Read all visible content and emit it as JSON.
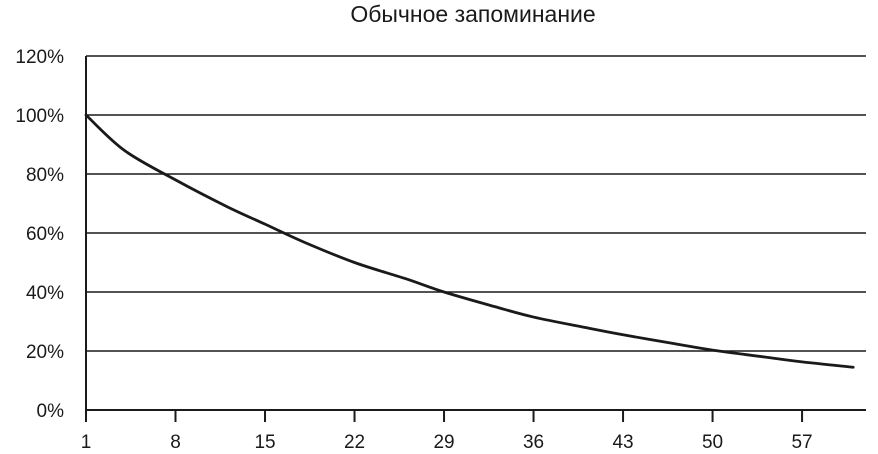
{
  "chart_data": {
    "type": "line",
    "title": "Обычное запоминание",
    "xlabel": "",
    "ylabel": "",
    "xlim": [
      1,
      62
    ],
    "ylim": [
      0,
      120
    ],
    "grid": true,
    "x_ticks": [
      1,
      8,
      15,
      22,
      29,
      36,
      43,
      50,
      57
    ],
    "x_tick_labels": [
      "1",
      "8",
      "15",
      "22",
      "29",
      "36",
      "43",
      "50",
      "57"
    ],
    "y_ticks": [
      0,
      20,
      40,
      60,
      80,
      100,
      120
    ],
    "y_tick_labels": [
      "0%",
      "20%",
      "40%",
      "60%",
      "80%",
      "100%",
      "120%"
    ],
    "series": [
      {
        "color": "#1a1a1a",
        "x": [
          1,
          4,
          8,
          12,
          15,
          18,
          22,
          26,
          29,
          33,
          36,
          40,
          43,
          47,
          50,
          54,
          57,
          61
        ],
        "y": [
          100,
          88,
          78,
          69,
          63,
          57,
          50,
          44.5,
          40,
          35,
          31.5,
          28,
          25.5,
          22.5,
          20.3,
          18,
          16.3,
          14.5
        ]
      }
    ]
  }
}
